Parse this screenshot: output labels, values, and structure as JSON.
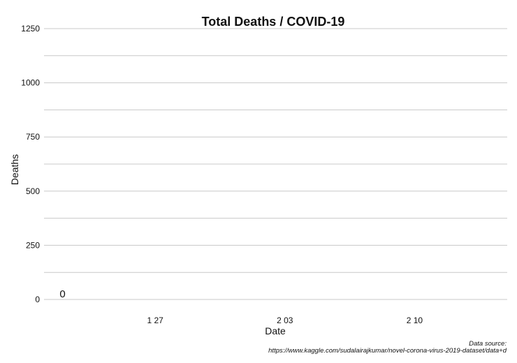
{
  "chart_data": {
    "type": "line",
    "title": "Total Deaths / COVID-19",
    "xlabel": "Date",
    "ylabel": "Deaths",
    "x_ticks": [
      {
        "label": "1 27",
        "date": "2020-01-27"
      },
      {
        "label": "2 03",
        "date": "2020-02-03"
      },
      {
        "label": "2 10",
        "date": "2020-02-10"
      }
    ],
    "xlim": [
      "2020-01-21",
      "2020-02-15"
    ],
    "y_ticks": [
      0,
      250,
      500,
      750,
      1000,
      1250
    ],
    "ylim": [
      -40,
      1250
    ],
    "grid": true,
    "series": [
      {
        "points": [
          {
            "x": "2020-01-22",
            "y": 0
          }
        ],
        "data_labels": [
          "0"
        ]
      }
    ],
    "caption": {
      "line1": "Data source:",
      "line2": "https://www.kaggle.com/sudalairajkumar/novel-corona-virus-2019-dataset/data+d"
    },
    "colors": {
      "gridline": "#c8c8c8",
      "text": "#111111",
      "background": "#ffffff"
    }
  }
}
